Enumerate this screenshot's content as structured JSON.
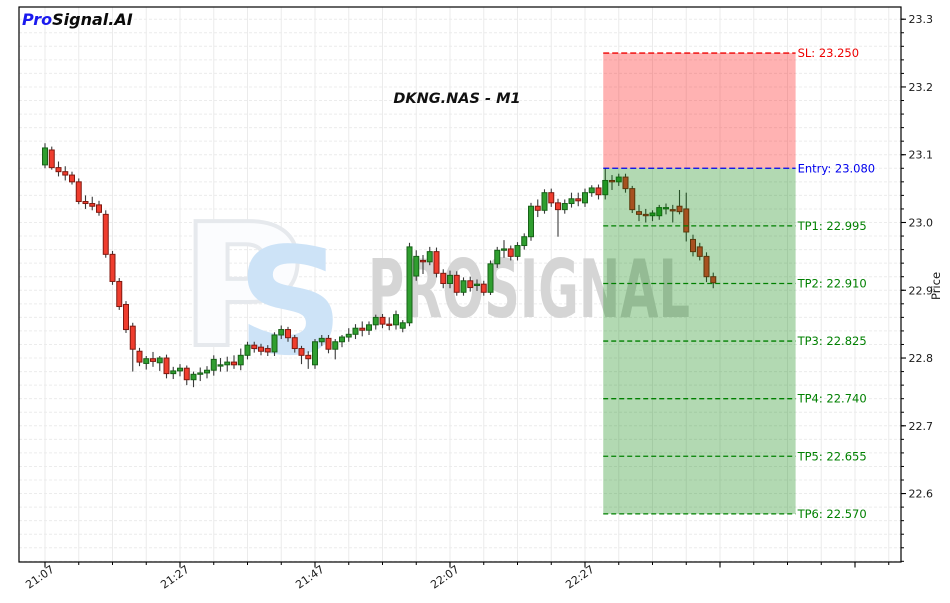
{
  "branding": {
    "logo_pro": "Pro",
    "logo_rest": "Signal.AI",
    "logo_color_pro": "#1a1aee",
    "logo_color_rest": "#0a0a0a"
  },
  "watermark": {
    "icon_p": "P",
    "icon_s": "S",
    "text": "PROSIGNAL"
  },
  "chart_data": {
    "type": "candlestick",
    "title": "DKNG.NAS - M1",
    "symbol": "DKNG.NAS",
    "timeframe": "M1",
    "ylabel": "Price",
    "grid": true,
    "x_axis": {
      "start_time": "21:07",
      "minutes_per_candle": 1,
      "total_minutes_span": 127,
      "minor_step_minutes": 5,
      "major_ticks": [
        {
          "minute": 0,
          "label": "21:07"
        },
        {
          "minute": 20,
          "label": "21:27"
        },
        {
          "minute": 40,
          "label": "21:47"
        },
        {
          "minute": 60,
          "label": "22:07"
        },
        {
          "minute": 80,
          "label": "22:27"
        },
        {
          "minute": 100,
          "label": ""
        },
        {
          "minute": 120,
          "label": ""
        }
      ]
    },
    "y_axis": {
      "range": [
        22.499,
        23.318
      ],
      "minor_step": 0.02,
      "major_ticks": [
        {
          "price": 23.3,
          "label": "23.3"
        },
        {
          "price": 23.2,
          "label": "23.2"
        },
        {
          "price": 23.1,
          "label": "23.1"
        },
        {
          "price": 23.0,
          "label": "23.0"
        },
        {
          "price": 22.9,
          "label": "22.9"
        },
        {
          "price": 22.8,
          "label": "22.8"
        },
        {
          "price": 22.7,
          "label": "22.7"
        },
        {
          "price": 22.6,
          "label": "22.6"
        }
      ]
    },
    "candles": [
      [
        23.085,
        23.117,
        23.08,
        23.11
      ],
      [
        23.107,
        23.112,
        23.078,
        23.081
      ],
      [
        23.081,
        23.09,
        23.068,
        23.075
      ],
      [
        23.075,
        23.083,
        23.062,
        23.07
      ],
      [
        23.07,
        23.075,
        23.056,
        23.06
      ],
      [
        23.06,
        23.065,
        23.027,
        23.031
      ],
      [
        23.031,
        23.04,
        23.02,
        23.028
      ],
      [
        23.028,
        23.038,
        23.018,
        23.024
      ],
      [
        23.026,
        23.032,
        23.01,
        23.015
      ],
      [
        23.012,
        23.018,
        22.948,
        22.953
      ],
      [
        22.953,
        22.958,
        22.908,
        22.913
      ],
      [
        22.913,
        22.918,
        22.871,
        22.876
      ],
      [
        22.879,
        22.884,
        22.837,
        22.842
      ],
      [
        22.847,
        22.852,
        22.78,
        22.813
      ],
      [
        22.81,
        22.815,
        22.788,
        22.794
      ],
      [
        22.792,
        22.803,
        22.783,
        22.799
      ],
      [
        22.799,
        22.809,
        22.787,
        22.795
      ],
      [
        22.793,
        22.803,
        22.781,
        22.8
      ],
      [
        22.8,
        22.805,
        22.77,
        22.777
      ],
      [
        22.777,
        22.787,
        22.769,
        22.781
      ],
      [
        22.781,
        22.791,
        22.773,
        22.785
      ],
      [
        22.785,
        22.789,
        22.76,
        22.768
      ],
      [
        22.768,
        22.78,
        22.757,
        22.776
      ],
      [
        22.776,
        22.786,
        22.766,
        22.778
      ],
      [
        22.778,
        22.788,
        22.77,
        22.782
      ],
      [
        22.782,
        22.804,
        22.774,
        22.798
      ],
      [
        22.79,
        22.8,
        22.78,
        22.79
      ],
      [
        22.79,
        22.802,
        22.78,
        22.794
      ],
      [
        22.794,
        22.804,
        22.784,
        22.79
      ],
      [
        22.79,
        22.814,
        22.782,
        22.804
      ],
      [
        22.804,
        22.824,
        22.798,
        22.819
      ],
      [
        22.819,
        22.824,
        22.808,
        22.814
      ],
      [
        22.816,
        22.821,
        22.804,
        22.81
      ],
      [
        22.814,
        22.819,
        22.803,
        22.809
      ],
      [
        22.809,
        22.838,
        22.803,
        22.834
      ],
      [
        22.834,
        22.848,
        22.828,
        22.842
      ],
      [
        22.842,
        22.846,
        22.824,
        22.83
      ],
      [
        22.83,
        22.834,
        22.808,
        22.814
      ],
      [
        22.814,
        22.818,
        22.791,
        22.804
      ],
      [
        22.804,
        22.81,
        22.784,
        22.799
      ],
      [
        22.79,
        22.828,
        22.784,
        22.824
      ],
      [
        22.824,
        22.834,
        22.818,
        22.829
      ],
      [
        22.829,
        22.834,
        22.807,
        22.813
      ],
      [
        22.813,
        22.828,
        22.798,
        22.824
      ],
      [
        22.824,
        22.834,
        22.816,
        22.831
      ],
      [
        22.831,
        22.844,
        22.824,
        22.835
      ],
      [
        22.835,
        22.85,
        22.828,
        22.844
      ],
      [
        22.844,
        22.854,
        22.832,
        22.841
      ],
      [
        22.841,
        22.854,
        22.834,
        22.849
      ],
      [
        22.849,
        22.864,
        22.842,
        22.86
      ],
      [
        22.86,
        22.865,
        22.844,
        22.85
      ],
      [
        22.85,
        22.86,
        22.841,
        22.849
      ],
      [
        22.849,
        22.87,
        22.842,
        22.864
      ],
      [
        22.844,
        22.856,
        22.838,
        22.852
      ],
      [
        22.852,
        22.97,
        22.847,
        22.964
      ],
      [
        22.921,
        22.959,
        22.914,
        22.95
      ],
      [
        22.944,
        22.952,
        22.924,
        22.942
      ],
      [
        22.942,
        22.964,
        22.937,
        22.957
      ],
      [
        22.957,
        22.963,
        22.919,
        22.925
      ],
      [
        22.925,
        22.931,
        22.903,
        22.91
      ],
      [
        22.91,
        22.929,
        22.903,
        22.922
      ],
      [
        22.922,
        22.928,
        22.892,
        22.897
      ],
      [
        22.897,
        22.919,
        22.892,
        22.914
      ],
      [
        22.914,
        22.92,
        22.898,
        22.904
      ],
      [
        22.907,
        22.916,
        22.899,
        22.909
      ],
      [
        22.909,
        22.914,
        22.892,
        22.897
      ],
      [
        22.897,
        22.944,
        22.893,
        22.939
      ],
      [
        22.939,
        22.964,
        22.933,
        22.959
      ],
      [
        22.959,
        22.974,
        22.948,
        22.961
      ],
      [
        22.961,
        22.966,
        22.944,
        22.95
      ],
      [
        22.95,
        22.971,
        22.944,
        22.966
      ],
      [
        22.966,
        22.984,
        22.96,
        22.979
      ],
      [
        22.979,
        23.029,
        22.973,
        23.024
      ],
      [
        23.024,
        23.034,
        23.008,
        23.018
      ],
      [
        23.018,
        23.049,
        23.013,
        23.044
      ],
      [
        23.044,
        23.05,
        23.023,
        23.029
      ],
      [
        23.029,
        23.035,
        22.979,
        23.019
      ],
      [
        23.019,
        23.034,
        23.013,
        23.028
      ],
      [
        23.028,
        23.044,
        23.022,
        23.035
      ],
      [
        23.035,
        23.044,
        23.024,
        23.032
      ],
      [
        23.029,
        23.05,
        23.023,
        23.044
      ],
      [
        23.044,
        23.055,
        23.038,
        23.051
      ],
      [
        23.051,
        23.056,
        23.034,
        23.041
      ],
      [
        23.041,
        23.08,
        23.034,
        23.062
      ],
      [
        23.062,
        23.07,
        23.048,
        23.06
      ],
      [
        23.06,
        23.072,
        23.054,
        23.067
      ],
      [
        23.067,
        23.072,
        23.044,
        23.05
      ],
      [
        23.05,
        23.054,
        23.014,
        23.019
      ],
      [
        23.016,
        23.026,
        23.002,
        23.012
      ],
      [
        23.012,
        23.02,
        23.0,
        23.01
      ],
      [
        23.01,
        23.018,
        23.002,
        23.014
      ],
      [
        23.01,
        23.026,
        23.004,
        23.022
      ],
      [
        23.022,
        23.028,
        23.012,
        23.022
      ],
      [
        23.019,
        23.026,
        23.0,
        23.018
      ],
      [
        23.024,
        23.048,
        23.012,
        23.016
      ],
      [
        23.02,
        23.044,
        22.972,
        22.986
      ],
      [
        22.975,
        22.982,
        22.95,
        22.957
      ],
      [
        22.964,
        22.97,
        22.944,
        22.95
      ],
      [
        22.95,
        22.956,
        22.912,
        22.92
      ],
      [
        22.92,
        22.926,
        22.903,
        22.911
      ]
    ]
  },
  "signal": {
    "sl": {
      "label": "SL: 23.250",
      "price": 23.25,
      "color": "#ee0000"
    },
    "entry": {
      "label": "Entry: 23.080",
      "price": 23.08,
      "color": "#0000ee"
    },
    "tps": [
      {
        "label": "TP1: 22.995",
        "price": 22.995
      },
      {
        "label": "TP2: 22.910",
        "price": 22.91
      },
      {
        "label": "TP3: 22.825",
        "price": 22.825
      },
      {
        "label": "TP4: 22.740",
        "price": 22.74
      },
      {
        "label": "TP5: 22.655",
        "price": 22.655
      },
      {
        "label": "TP6: 22.570",
        "price": 22.57
      }
    ],
    "tp_color": "#008000",
    "zone": {
      "start_minute": 82.7,
      "end_minute": 111.2,
      "risk_fill": "#ff0000",
      "reward_fill": "#008000",
      "fill_opacity": 0.3
    }
  },
  "colors": {
    "up_fill": "#2f9e2f",
    "up_border": "#176117",
    "down_fill": "#ef3d2e",
    "down_border": "#801910",
    "wick": "#3a3a3a",
    "grid_v": "#ebebeb",
    "grid_h": "#ececec",
    "axis": "#000000",
    "tick_label": "#1a1a1a",
    "title": "#111111",
    "watermark_text": "#d5d5d5",
    "watermark_s": "#cde3f7",
    "watermark_p_fill": "#fbfcfe",
    "watermark_p_stroke": "#e6e9ed"
  }
}
